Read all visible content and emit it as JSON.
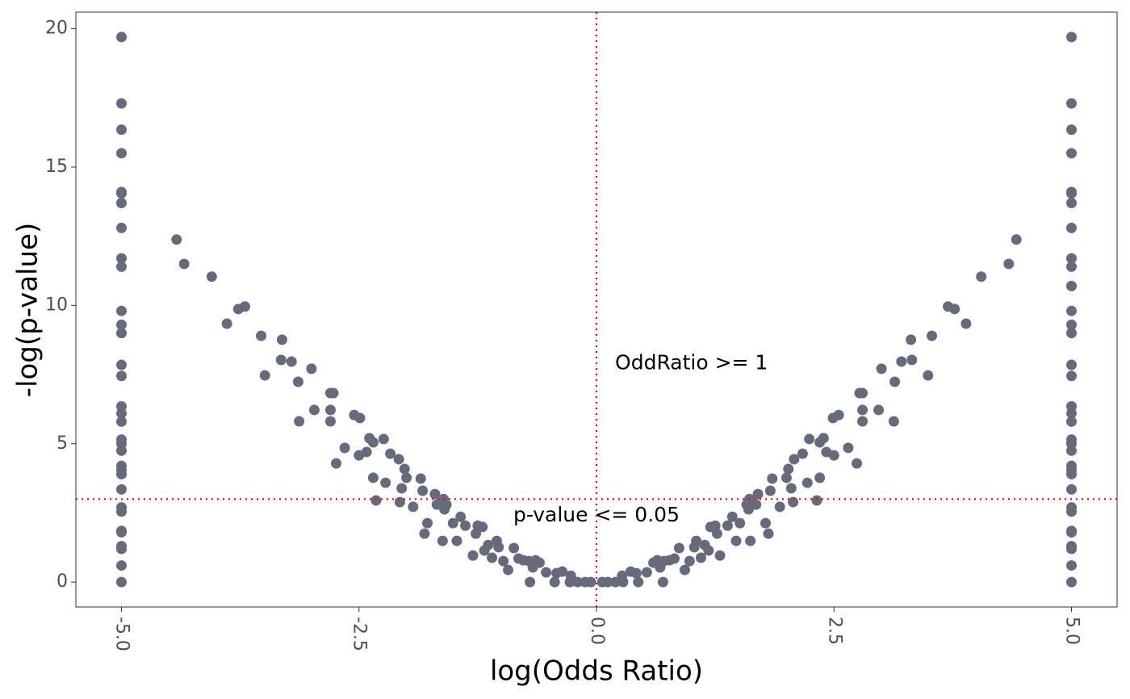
{
  "chart_data": {
    "type": "scatter",
    "xlabel": "log(Odds Ratio)",
    "ylabel": "-log(p-value)",
    "color": "#676a7b",
    "grid": false,
    "xlim": [
      -5.48,
      5.48
    ],
    "ylim": [
      -0.9,
      20.6
    ],
    "xticks": [
      {
        "value": -5,
        "label": "-5.0"
      },
      {
        "value": -2.5,
        "label": "-2.5"
      },
      {
        "value": 0,
        "label": "0.0"
      },
      {
        "value": 2.5,
        "label": "2.5"
      },
      {
        "value": 5,
        "label": "5.0"
      }
    ],
    "yticks": [
      0,
      5,
      10,
      15,
      20
    ],
    "hline": 3,
    "vline": 0,
    "refline_color": "#ff0000",
    "annotations": [
      {
        "text": "OddRatio >= 1",
        "x": 1.0,
        "y": 7.9
      },
      {
        "text": "p-value <= 0.05",
        "x": 0,
        "y": 2.4
      }
    ],
    "x": [
      -5,
      -5,
      -5,
      -5,
      -5,
      -5,
      -5,
      -5,
      -5,
      -5,
      -5,
      -5,
      -5,
      -5,
      -5,
      -5,
      -5,
      -5,
      -5,
      -5,
      -5,
      -5,
      -5,
      -5,
      -5,
      -5,
      -5,
      -5,
      -5,
      -5,
      -5,
      -5,
      -5,
      -4.42,
      -4.34,
      -4.05,
      -3.89,
      -3.77,
      -3.7,
      -3.53,
      -3.49,
      -3.32,
      -3.31,
      -3.21,
      -3.14,
      -3.13,
      -3.0,
      -2.97,
      -2.8,
      -2.77,
      -2.8,
      -2.8,
      -2.74,
      -2.65,
      -2.55,
      -2.49,
      -2.5,
      -2.42,
      -2.39,
      -2.35,
      -2.35,
      -2.32,
      -2.24,
      -2.22,
      -2.17,
      -2.08,
      -2.07,
      -2.05,
      -2.02,
      -2.0,
      -1.93,
      -1.85,
      -1.83,
      -1.81,
      -1.78,
      -1.7,
      -1.68,
      -1.62,
      -1.61,
      -1.6,
      -1.58,
      -1.51,
      -1.47,
      -1.43,
      -1.38,
      -1.3,
      -1.27,
      -1.25,
      -1.2,
      -1.18,
      -1.14,
      -1.1,
      -1.05,
      -1.03,
      -0.98,
      -0.93,
      -0.87,
      -0.82,
      -0.77,
      -0.71,
      -0.7,
      -0.67,
      -0.64,
      -0.6,
      -0.53,
      -0.44,
      -0.42,
      -0.36,
      -0.28,
      -0.27,
      -0.2,
      -0.12,
      -0.06,
      4.42,
      4.34,
      4.05,
      3.89,
      3.77,
      3.7,
      3.53,
      3.49,
      3.32,
      3.31,
      3.21,
      3.14,
      3.13,
      3.0,
      2.97,
      2.8,
      2.77,
      2.8,
      2.8,
      2.74,
      2.65,
      2.55,
      2.49,
      2.5,
      2.42,
      2.39,
      2.35,
      2.35,
      2.32,
      2.24,
      2.22,
      2.17,
      2.08,
      2.07,
      2.05,
      2.02,
      2.0,
      1.93,
      1.85,
      1.83,
      1.81,
      1.78,
      1.7,
      1.68,
      1.62,
      1.61,
      1.6,
      1.58,
      1.51,
      1.47,
      1.43,
      1.38,
      1.3,
      1.27,
      1.25,
      1.2,
      1.18,
      1.14,
      1.1,
      1.05,
      1.03,
      0.98,
      0.93,
      0.87,
      0.82,
      0.77,
      0.71,
      0.7,
      0.67,
      0.64,
      0.6,
      0.53,
      0.44,
      0.42,
      0.36,
      0.28,
      0.27,
      0.2,
      0.12,
      0.06,
      5,
      5,
      5,
      5,
      5,
      5,
      5,
      5,
      5,
      5,
      5,
      5,
      5,
      5,
      5,
      5,
      5,
      5,
      5,
      5,
      5,
      5,
      5,
      5,
      5,
      5,
      5,
      5,
      5,
      5,
      5,
      5,
      5,
      5
    ],
    "values": [
      19.7,
      17.3,
      16.35,
      15.5,
      14.1,
      14.05,
      13.7,
      12.8,
      11.7,
      11.4,
      9.8,
      9.3,
      9.0,
      7.85,
      7.45,
      6.35,
      6.1,
      5.8,
      5.15,
      5.0,
      4.75,
      4.2,
      4.05,
      3.9,
      3.35,
      2.7,
      2.55,
      1.85,
      1.8,
      1.3,
      1.2,
      0.6,
      0,
      12.38,
      11.5,
      11.04,
      9.34,
      9.87,
      9.96,
      8.9,
      7.47,
      8.03,
      8.76,
      7.97,
      7.24,
      5.81,
      7.71,
      6.22,
      6.83,
      6.83,
      6.22,
      5.81,
      4.29,
      4.85,
      6.04,
      5.93,
      4.58,
      4.7,
      5.2,
      5.05,
      3.77,
      2.95,
      5.17,
      3.59,
      4.64,
      4.44,
      2.89,
      3.39,
      4.09,
      3.77,
      2.72,
      3.74,
      3.3,
      1.75,
      2.13,
      3.18,
      2.8,
      1.49,
      3.0,
      2.63,
      2.8,
      2.13,
      1.49,
      2.36,
      2.04,
      0.96,
      1.75,
      2.04,
      1.99,
      1.14,
      1.34,
      0.88,
      1.49,
      1.26,
      0.76,
      0.44,
      1.23,
      0.85,
      0.79,
      0.76,
      0,
      0.53,
      0.79,
      0.7,
      0.35,
      0,
      0.32,
      0.38,
      0,
      0.23,
      0,
      0,
      0,
      12.38,
      11.5,
      11.04,
      9.34,
      9.87,
      9.96,
      8.9,
      7.47,
      8.03,
      8.76,
      7.97,
      7.24,
      5.81,
      7.71,
      6.22,
      6.83,
      6.83,
      6.22,
      5.81,
      4.29,
      4.85,
      6.04,
      5.93,
      4.58,
      4.7,
      5.2,
      5.05,
      3.77,
      2.95,
      5.17,
      3.59,
      4.64,
      4.44,
      2.89,
      3.39,
      4.09,
      3.77,
      2.72,
      3.74,
      3.3,
      1.75,
      2.13,
      3.18,
      2.8,
      1.49,
      3.0,
      2.63,
      2.8,
      2.13,
      1.49,
      2.36,
      2.04,
      0.96,
      1.75,
      2.04,
      1.99,
      1.14,
      1.34,
      0.88,
      1.49,
      1.26,
      0.76,
      0.44,
      1.23,
      0.85,
      0.79,
      0.76,
      0,
      0.53,
      0.79,
      0.7,
      0.35,
      0,
      0.32,
      0.38,
      0,
      0.23,
      0,
      0,
      0,
      19.7,
      17.3,
      16.35,
      15.5,
      14.1,
      14.05,
      13.7,
      12.8,
      11.7,
      11.4,
      10.7,
      9.8,
      9.3,
      9.0,
      7.85,
      7.45,
      6.35,
      6.1,
      5.8,
      5.15,
      5.0,
      4.75,
      4.2,
      4.05,
      3.9,
      3.35,
      2.7,
      2.55,
      1.85,
      1.8,
      1.3,
      1.2,
      0.6,
      0
    ]
  }
}
